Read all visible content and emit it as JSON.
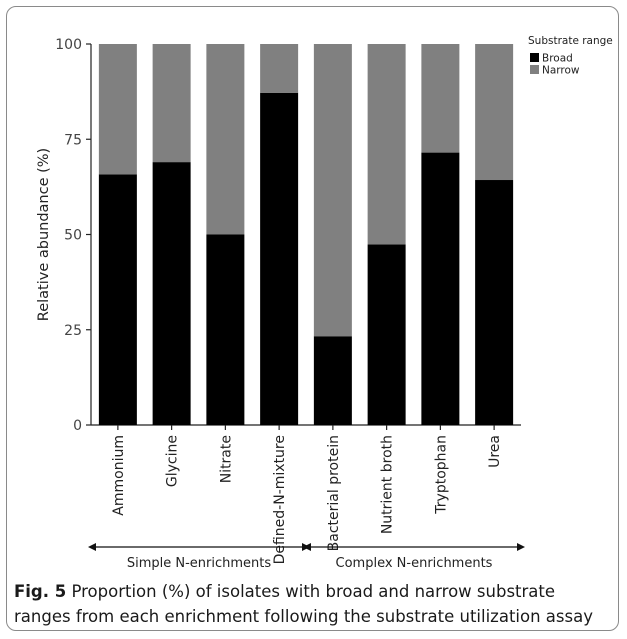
{
  "chart_data": {
    "type": "bar",
    "stacked": true,
    "categories": [
      "Ammonium",
      "Glycine",
      "Nitrate",
      "Defined-N-mixture",
      "Bacterial protein",
      "Nutrient broth",
      "Tryptophan",
      "Urea"
    ],
    "series": [
      {
        "name": "Broad",
        "values": [
          65.8,
          69.0,
          50.0,
          87.2,
          23.3,
          47.4,
          71.5,
          64.3
        ],
        "color": "#000000"
      },
      {
        "name": "Narrow",
        "values": [
          34.2,
          31.0,
          50.0,
          12.8,
          76.7,
          52.6,
          28.5,
          35.7
        ],
        "color": "#808080"
      }
    ],
    "ylabel": "Relative abundance (%)",
    "xlabel": "",
    "ylim": [
      0,
      100
    ],
    "yticks": [
      0,
      25,
      50,
      75,
      100
    ],
    "grid": false,
    "legend": {
      "title": "Substrate range",
      "position": "top-right"
    },
    "groups": [
      {
        "label": "Simple N-enrichments",
        "categories": [
          "Ammonium",
          "Glycine",
          "Nitrate",
          "Defined-N-mixture"
        ]
      },
      {
        "label": "Complex N-enrichments",
        "categories": [
          "Bacterial protein",
          "Nutrient broth",
          "Tryptophan",
          "Urea"
        ]
      }
    ]
  },
  "caption": {
    "label": "Fig. 5",
    "text": " Proportion (%) of isolates with broad and narrow substrate ranges from each enrichment following the substrate utilization assay"
  }
}
